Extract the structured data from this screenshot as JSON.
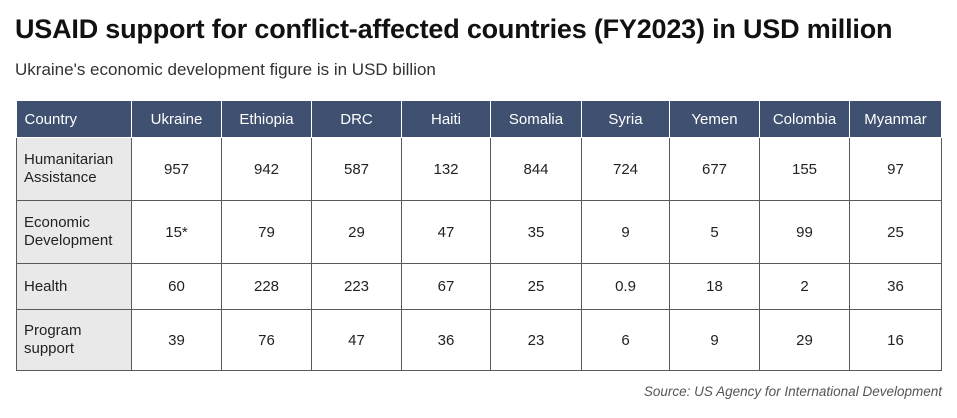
{
  "title": "USAID support for conflict-affected countries (FY2023) in USD million",
  "subtitle": "Ukraine's economic development figure is in USD billion",
  "source": "Source: US Agency for International Development",
  "colors": {
    "header_bg": "#3f5070",
    "rowhead_bg": "#e9e9e9",
    "border": "#5a5a5a"
  },
  "chart_data": {
    "type": "table",
    "title": "USAID support for conflict-affected countries (FY2023) in USD million",
    "subtitle": "Ukraine's economic development figure is in USD billion",
    "corner_header": "Country",
    "columns": [
      "Ukraine",
      "Ethiopia",
      "DRC",
      "Haiti",
      "Somalia",
      "Syria",
      "Yemen",
      "Colombia",
      "Myanmar"
    ],
    "rows": [
      {
        "label": [
          "Humanitarian",
          "Assistance"
        ],
        "values": [
          "957",
          "942",
          "587",
          "132",
          "844",
          "724",
          "677",
          "155",
          "97"
        ]
      },
      {
        "label": [
          "Economic",
          "Development"
        ],
        "values": [
          "15*",
          "79",
          "29",
          "47",
          "35",
          "9",
          "5",
          "99",
          "25"
        ]
      },
      {
        "label": [
          "Health"
        ],
        "values": [
          "60",
          "228",
          "223",
          "67",
          "25",
          "0.9",
          "18",
          "2",
          "36"
        ]
      },
      {
        "label": [
          "Program",
          "support"
        ],
        "values": [
          "39",
          "76",
          "47",
          "36",
          "23",
          "6",
          "9",
          "29",
          "16"
        ]
      }
    ],
    "source": "Source: US Agency for International Development"
  }
}
